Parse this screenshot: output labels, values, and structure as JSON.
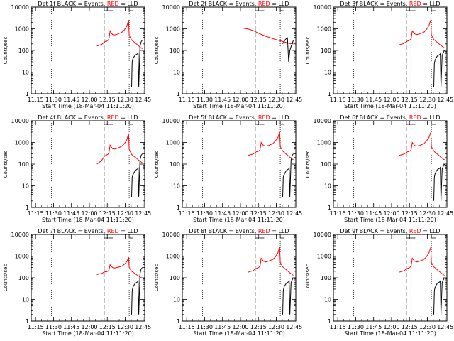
{
  "figure": {
    "x_ticks": [
      "11:15",
      "11:30",
      "11:45",
      "12:00",
      "12:15",
      "12:30",
      "12:45"
    ],
    "y_ticks": [
      "1",
      "10",
      "100",
      "1000",
      "10000"
    ],
    "ylabel": "Counts/sec",
    "xlabel": "Start Time (18-Mar-04 11:11:20)",
    "legend_words": {
      "black": "BLACK",
      "red": "RED"
    }
  },
  "chart_data": [
    {
      "type": "line",
      "title": "Det 1f BLACK = Events, RED = LLD",
      "xlabel": "Start Time (18-Mar-04 11:11:20)",
      "ylabel": "Counts/sec",
      "yscale": "log",
      "ylim": [
        1,
        10000
      ],
      "x_unit": "minutes after 11:11:20",
      "dashed_vlines_x": [
        61,
        65
      ],
      "dotted_vlines_x": [
        17,
        82
      ],
      "series": [
        {
          "color": "red",
          "x": [
            55,
            57,
            59,
            60,
            61,
            62,
            63,
            64,
            65,
            66,
            67,
            68,
            70,
            72,
            74,
            76,
            78,
            80,
            81.5,
            82,
            84,
            86,
            88,
            90,
            92,
            93
          ],
          "y": [
            160,
            175,
            190,
            210,
            230,
            260,
            260,
            290,
            330,
            800,
            650,
            550,
            520,
            560,
            620,
            700,
            900,
            1300,
            2500,
            500,
            300,
            250,
            200,
            160,
            130,
            120
          ]
        },
        {
          "color": "black",
          "x": [
            84,
            84.5,
            85,
            85.5,
            86,
            86.5,
            87,
            88,
            89,
            89.5,
            90,
            91,
            92,
            93
          ],
          "y": [
            2,
            30,
            40,
            45,
            50,
            55,
            60,
            65,
            70,
            75,
            2,
            150,
            250,
            300
          ]
        }
      ]
    },
    {
      "type": "line",
      "title": "Det 2f BLACK = Events, RED = LLD",
      "xlabel": "Start Time (18-Mar-04 11:11:20)",
      "ylabel": "Counts/sec",
      "yscale": "log",
      "ylim": [
        1,
        10000
      ],
      "x_unit": "minutes after 11:11:20",
      "dashed_vlines_x": [
        61,
        65
      ],
      "dotted_vlines_x": [
        17,
        82
      ],
      "series": [
        {
          "color": "red",
          "x": [
            48,
            52,
            56,
            60,
            63,
            66,
            70,
            74,
            78,
            82,
            86,
            90,
            93
          ],
          "y": [
            1100,
            1050,
            950,
            800,
            650,
            550,
            450,
            380,
            320,
            280,
            240,
            210,
            200
          ]
        },
        {
          "color": "black",
          "x": [
            84,
            85,
            86,
            87,
            88,
            89,
            90,
            91,
            92,
            93
          ],
          "y": [
            200,
            250,
            300,
            350,
            380,
            30,
            100,
            150,
            200,
            300
          ]
        }
      ]
    },
    {
      "type": "line",
      "title": "Det 3f BLACK = Events, RED = LLD",
      "xlabel": "Start Time (18-Mar-04 11:11:20)",
      "ylabel": "Counts/sec",
      "yscale": "log",
      "ylim": [
        1,
        10000
      ],
      "x_unit": "minutes after 11:11:20",
      "dashed_vlines_x": [
        61,
        65
      ],
      "dotted_vlines_x": [
        17,
        82
      ],
      "series": [
        {
          "color": "red",
          "x": [
            55,
            57,
            59,
            60,
            61,
            62,
            63,
            64,
            65,
            66,
            67,
            68,
            70,
            72,
            74,
            76,
            78,
            80,
            81.5,
            82,
            84,
            86,
            88,
            90,
            92,
            93
          ],
          "y": [
            180,
            195,
            210,
            230,
            250,
            270,
            280,
            300,
            340,
            800,
            680,
            580,
            540,
            580,
            640,
            720,
            950,
            1400,
            2600,
            520,
            320,
            260,
            210,
            170,
            140,
            130
          ]
        },
        {
          "color": "black",
          "x": [
            84,
            84.5,
            85,
            85.5,
            86,
            86.5,
            87,
            88,
            89,
            89.5,
            90,
            91,
            92,
            93
          ],
          "y": [
            2,
            25,
            35,
            40,
            45,
            50,
            55,
            60,
            65,
            70,
            2,
            60,
            80,
            100
          ]
        }
      ]
    },
    {
      "type": "line",
      "title": "Det 4f BLACK = Events, RED = LLD",
      "xlabel": "Start Time (18-Mar-04 11:11:20)",
      "ylabel": "Counts/sec",
      "yscale": "log",
      "ylim": [
        1,
        10000
      ],
      "x_unit": "minutes after 11:11:20",
      "dashed_vlines_x": [
        61,
        65
      ],
      "dotted_vlines_x": [
        17,
        82
      ],
      "series": [
        {
          "color": "red",
          "x": [
            55,
            57,
            59,
            60,
            61,
            62,
            63,
            64,
            65,
            66,
            67,
            68,
            70,
            72,
            74,
            76,
            78,
            80,
            81.5,
            82,
            84,
            86,
            88,
            90,
            92,
            93
          ],
          "y": [
            100,
            120,
            150,
            180,
            220,
            250,
            260,
            280,
            320,
            750,
            620,
            520,
            500,
            540,
            600,
            680,
            880,
            1300,
            2600,
            480,
            280,
            230,
            190,
            150,
            125,
            115
          ]
        },
        {
          "color": "black",
          "x": [
            84,
            84.5,
            85,
            85.5,
            86,
            86.5,
            87,
            88,
            89,
            89.5,
            90,
            91,
            92,
            93
          ],
          "y": [
            3,
            25,
            30,
            35,
            40,
            45,
            50,
            55,
            60,
            65,
            3,
            150,
            250,
            300
          ]
        }
      ]
    },
    {
      "type": "line",
      "title": "Det 5f BLACK = Events, RED = LLD",
      "xlabel": "Start Time (18-Mar-04 11:11:20)",
      "ylabel": "Counts/sec",
      "yscale": "log",
      "ylim": [
        1,
        10000
      ],
      "x_unit": "minutes after 11:11:20",
      "dashed_vlines_x": [
        61,
        65
      ],
      "dotted_vlines_x": [
        17,
        82
      ],
      "series": [
        {
          "color": "red",
          "x": [
            55,
            57,
            59,
            60,
            61,
            62,
            63,
            64,
            65,
            66,
            67,
            68,
            70,
            72,
            74,
            76,
            78,
            80,
            81.5,
            82,
            84,
            86,
            88,
            90,
            92,
            93
          ],
          "y": [
            250,
            270,
            290,
            310,
            340,
            370,
            380,
            400,
            450,
            1000,
            850,
            720,
            680,
            720,
            800,
            900,
            1200,
            1700,
            3000,
            650,
            400,
            320,
            260,
            210,
            170,
            160
          ]
        },
        {
          "color": "black",
          "x": [
            84,
            84.5,
            85,
            85.5,
            86,
            86.5,
            87,
            88,
            89,
            89.5,
            90,
            91,
            92,
            93
          ],
          "y": [
            3,
            25,
            30,
            35,
            40,
            45,
            50,
            55,
            60,
            65,
            3,
            150,
            250,
            300
          ]
        }
      ]
    },
    {
      "type": "line",
      "title": "Det 6f BLACK = Events, RED = LLD",
      "xlabel": "Start Time (18-Mar-04 11:11:20)",
      "ylabel": "Counts/sec",
      "yscale": "log",
      "ylim": [
        1,
        10000
      ],
      "x_unit": "minutes after 11:11:20",
      "dashed_vlines_x": [
        61,
        65
      ],
      "dotted_vlines_x": [
        17,
        82
      ],
      "series": [
        {
          "color": "red",
          "x": [
            55,
            57,
            59,
            60,
            61,
            62,
            63,
            64,
            65,
            66,
            67,
            68,
            70,
            72,
            74,
            76,
            78,
            80,
            81.5,
            82,
            84,
            86,
            88,
            90,
            92,
            93
          ],
          "y": [
            250,
            270,
            290,
            310,
            340,
            370,
            380,
            400,
            450,
            1000,
            850,
            720,
            680,
            720,
            800,
            900,
            1200,
            1700,
            3000,
            650,
            400,
            320,
            260,
            210,
            170,
            160
          ]
        },
        {
          "color": "black",
          "x": [
            84,
            84.5,
            85,
            85.5,
            86,
            86.5,
            87,
            88,
            89,
            89.5,
            90,
            91,
            92,
            93
          ],
          "y": [
            2,
            25,
            35,
            40,
            45,
            50,
            55,
            60,
            65,
            70,
            2,
            60,
            80,
            100
          ]
        }
      ]
    },
    {
      "type": "line",
      "title": "Det 7f BLACK = Events, RED = LLD",
      "xlabel": "Start Time (18-Mar-04 11:11:20)",
      "ylabel": "Counts/sec",
      "yscale": "log",
      "ylim": [
        1,
        10000
      ],
      "x_unit": "minutes after 11:11:20",
      "dashed_vlines_x": [
        61,
        65
      ],
      "dotted_vlines_x": [
        17,
        82
      ],
      "series": [
        {
          "color": "red",
          "x": [
            55,
            57,
            59,
            60,
            61,
            62,
            63,
            64,
            65,
            66,
            67,
            68,
            70,
            72,
            74,
            76,
            78,
            80,
            81.5,
            82,
            84,
            86,
            88,
            90,
            92,
            93
          ],
          "y": [
            140,
            150,
            160,
            170,
            180,
            190,
            190,
            200,
            220,
            400,
            350,
            300,
            280,
            300,
            320,
            350,
            420,
            550,
            900,
            300,
            200,
            170,
            140,
            120,
            100,
            95
          ]
        },
        {
          "color": "black",
          "x": [
            84,
            84.5,
            85,
            85.5,
            86,
            86.5,
            87,
            88,
            89,
            89.5,
            90,
            91,
            92,
            93
          ],
          "y": [
            2,
            25,
            35,
            40,
            45,
            50,
            55,
            60,
            65,
            70,
            2,
            150,
            250,
            300
          ]
        }
      ]
    },
    {
      "type": "line",
      "title": "Det 8f BLACK = Events, RED = LLD",
      "xlabel": "Start Time (18-Mar-04 11:11:20)",
      "ylabel": "Counts/sec",
      "yscale": "log",
      "ylim": [
        1,
        10000
      ],
      "x_unit": "minutes after 11:11:20",
      "dashed_vlines_x": [
        61,
        65
      ],
      "dotted_vlines_x": [
        17,
        82
      ],
      "series": [
        {
          "color": "red",
          "x": [
            55,
            57,
            59,
            60,
            61,
            62,
            63,
            64,
            65,
            66,
            67,
            68,
            70,
            72,
            74,
            76,
            78,
            80,
            81.5,
            82,
            84,
            86,
            88,
            90,
            92,
            93
          ],
          "y": [
            180,
            195,
            210,
            230,
            250,
            270,
            280,
            300,
            340,
            800,
            680,
            580,
            540,
            580,
            640,
            720,
            950,
            1400,
            2600,
            520,
            320,
            260,
            210,
            170,
            140,
            130
          ]
        },
        {
          "color": "black",
          "x": [
            84,
            84.5,
            85,
            85.5,
            86,
            86.5,
            87,
            88,
            89,
            89.5,
            90,
            91,
            92,
            93
          ],
          "y": [
            2,
            25,
            35,
            40,
            45,
            50,
            55,
            60,
            65,
            70,
            2,
            60,
            80,
            100
          ]
        }
      ]
    },
    {
      "type": "line",
      "title": "Det 9f BLACK = Events, RED = LLD",
      "xlabel": "Start Time (18-Mar-04 11:11:20)",
      "ylabel": "Counts/sec",
      "yscale": "log",
      "ylim": [
        1,
        10000
      ],
      "x_unit": "minutes after 11:11:20",
      "dashed_vlines_x": [
        61,
        65
      ],
      "dotted_vlines_x": [
        17,
        82
      ],
      "series": [
        {
          "color": "red",
          "x": [
            55,
            57,
            59,
            60,
            61,
            62,
            63,
            64,
            65,
            66,
            67,
            68,
            70,
            72,
            74,
            76,
            78,
            80,
            81.5,
            82,
            84,
            86,
            88,
            90,
            92,
            93
          ],
          "y": [
            180,
            195,
            210,
            230,
            250,
            270,
            280,
            300,
            340,
            800,
            680,
            580,
            540,
            580,
            640,
            720,
            950,
            1400,
            2600,
            520,
            320,
            260,
            210,
            170,
            140,
            130
          ]
        },
        {
          "color": "black",
          "x": [
            84,
            84.5,
            85,
            85.5,
            86,
            86.5,
            87,
            88,
            89,
            89.5,
            90,
            91,
            92,
            93
          ],
          "y": [
            2,
            25,
            35,
            40,
            45,
            50,
            55,
            60,
            65,
            70,
            2,
            60,
            80,
            100
          ]
        }
      ]
    }
  ]
}
